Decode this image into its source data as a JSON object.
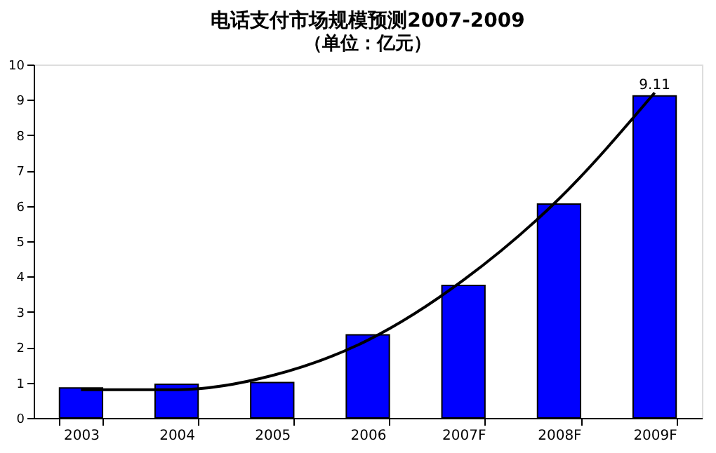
{
  "chart_data": {
    "type": "bar",
    "title": "电话支付市场规模预测2007-2009",
    "subtitle": "（单位：亿元）",
    "categories": [
      "2003",
      "2004",
      "2005",
      "2006",
      "2007F",
      "2008F",
      "2009F"
    ],
    "series": [
      {
        "color": "#0000ff",
        "values": [
          0.85,
          0.95,
          1.0,
          2.35,
          3.75,
          6.05,
          9.11
        ],
        "value_labels": [
          null,
          null,
          null,
          null,
          null,
          null,
          "9.11"
        ]
      },
      {
        "type": "line",
        "color": "#000000",
        "values": [
          0.8,
          0.8,
          1.2,
          2.2,
          3.9,
          6.2,
          9.2
        ]
      }
    ],
    "ylim": [
      0,
      10
    ],
    "yticks": [
      0,
      1,
      2,
      3,
      4,
      5,
      6,
      7,
      8,
      9,
      10
    ],
    "grid": false,
    "marker": "none",
    "line_style": "solid"
  }
}
